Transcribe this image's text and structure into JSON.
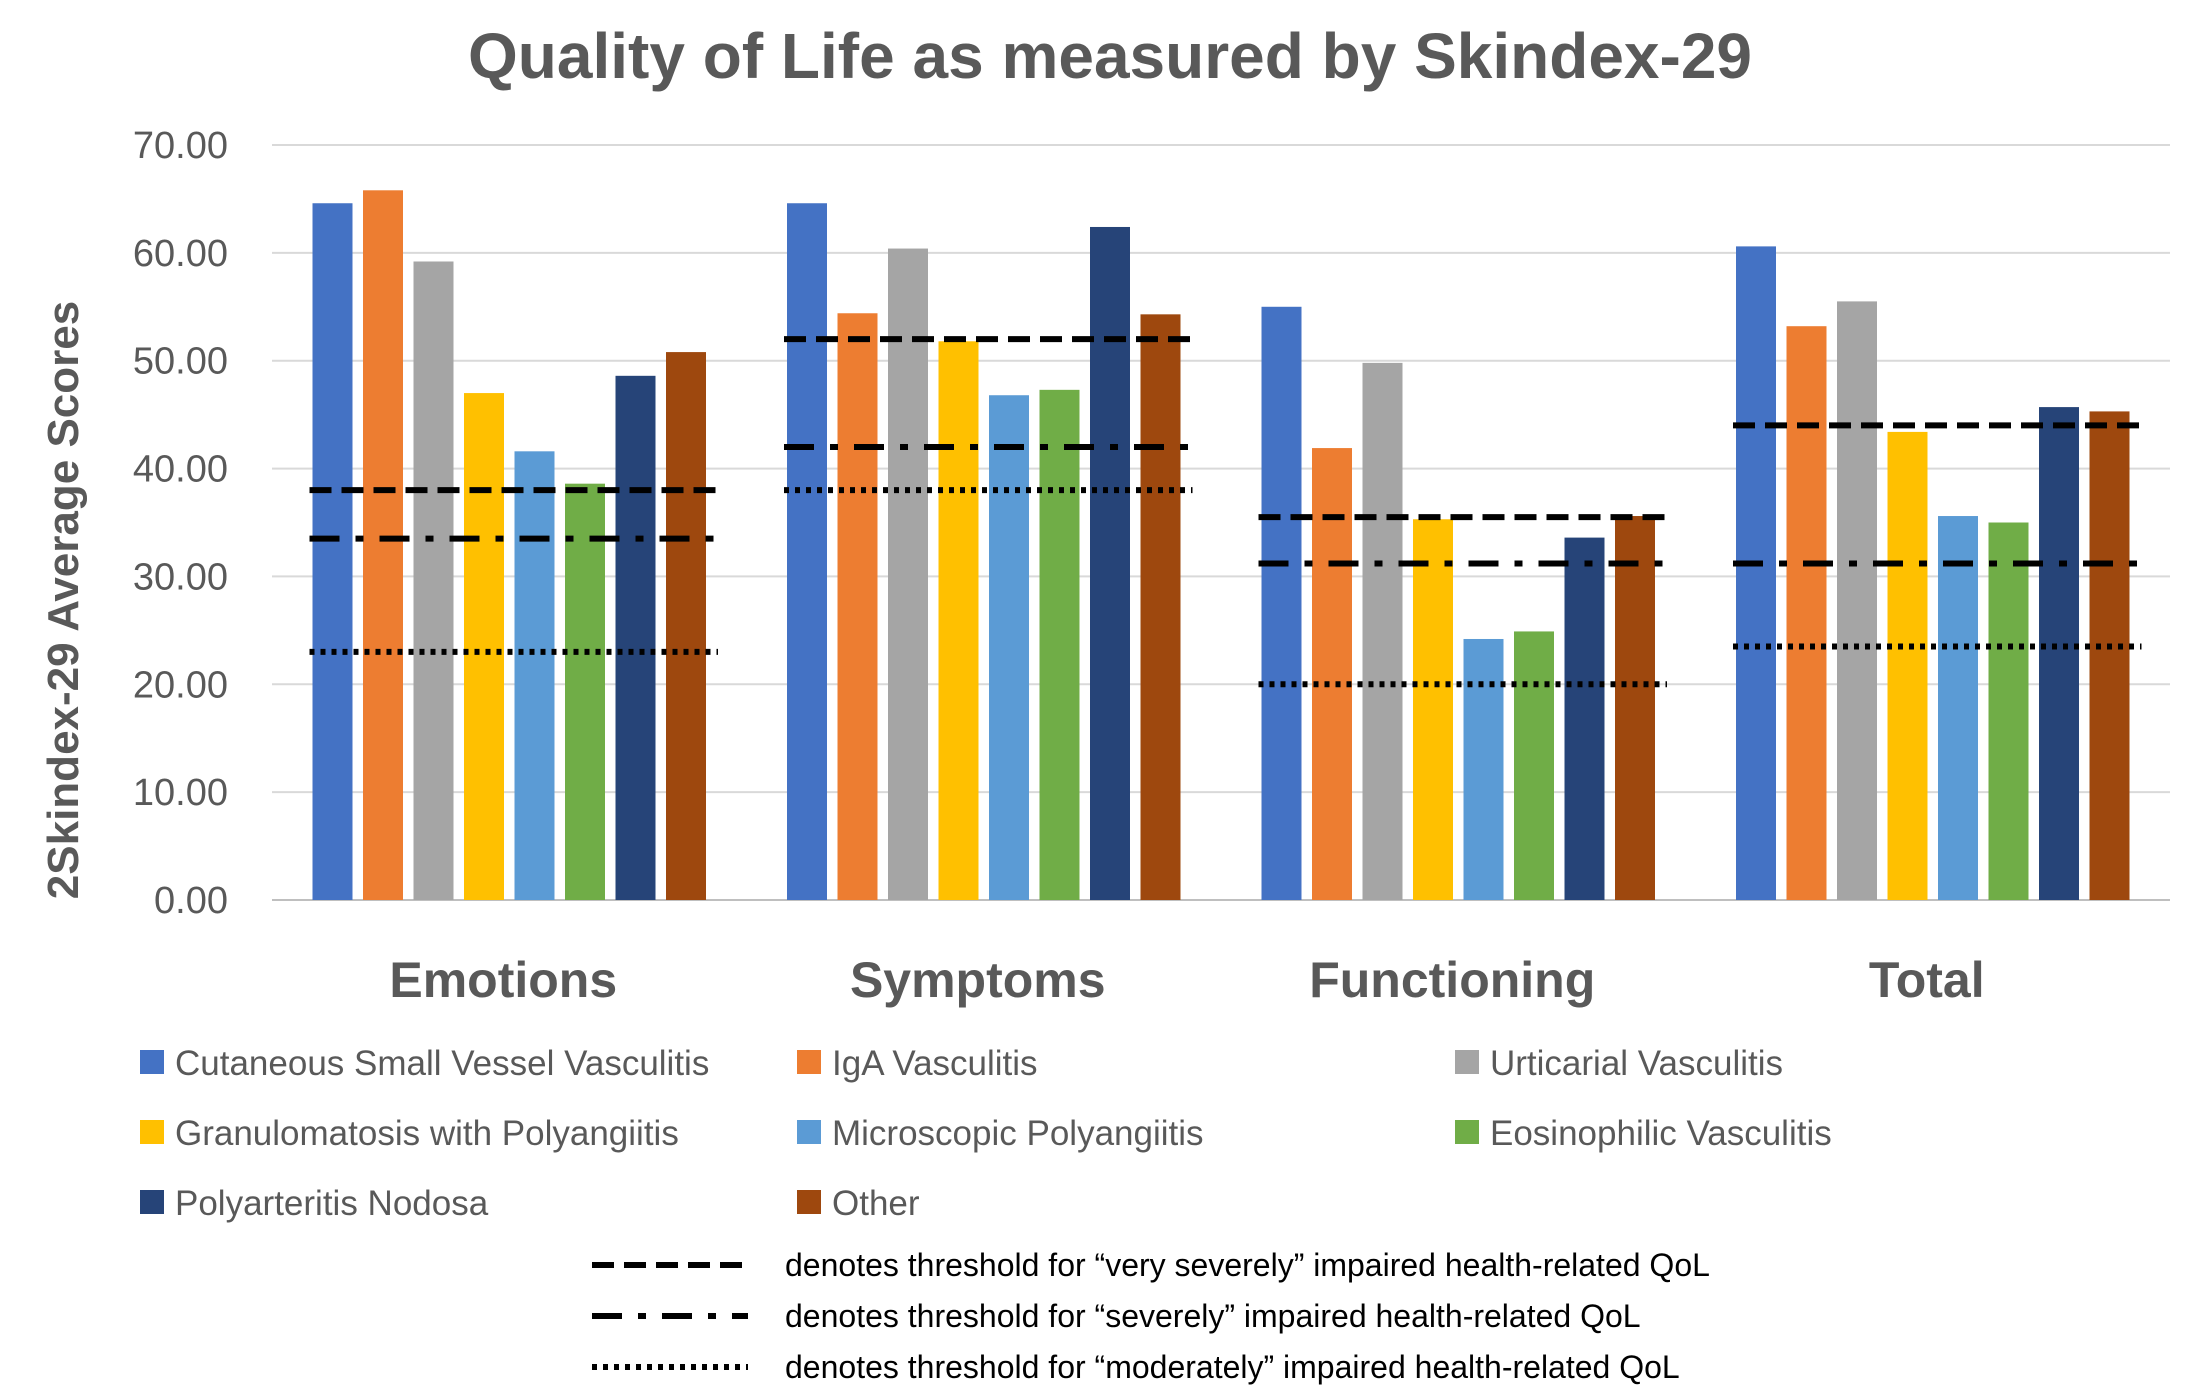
{
  "chart_data": {
    "type": "bar",
    "title": "Quality of Life as measured by Skindex-29",
    "ylabel": "2Skindex-29 Average Scores",
    "xlabel": "",
    "ylim": [
      0,
      70
    ],
    "yticks": [
      "0.00",
      "10.00",
      "20.00",
      "30.00",
      "40.00",
      "50.00",
      "60.00",
      "70.00"
    ],
    "grid": true,
    "legend_position": "bottom",
    "categories": [
      "Emotions",
      "Symptoms",
      "Functioning",
      "Total"
    ],
    "series": [
      {
        "name": "Cutaneous Small Vessel Vasculitis",
        "color": "#4472C4",
        "values": [
          64.6,
          64.6,
          55.0,
          60.6
        ]
      },
      {
        "name": "IgA Vasculitis",
        "color": "#ED7D31",
        "values": [
          65.8,
          54.4,
          41.9,
          53.2
        ]
      },
      {
        "name": "Urticarial Vasculitis",
        "color": "#A5A5A5",
        "values": [
          59.2,
          60.4,
          49.8,
          55.5
        ]
      },
      {
        "name": "Granulomatosis with Polyangiitis",
        "color": "#FFC000",
        "values": [
          47.0,
          51.8,
          35.3,
          43.4
        ]
      },
      {
        "name": "Microscopic Polyangiitis",
        "color": "#5B9BD5",
        "values": [
          41.6,
          46.8,
          24.2,
          35.6
        ]
      },
      {
        "name": "Eosinophilic Vasculitis",
        "color": "#70AD47",
        "values": [
          38.6,
          47.3,
          24.9,
          35.0
        ]
      },
      {
        "name": "Polyarteritis Nodosa",
        "color": "#264478",
        "values": [
          48.6,
          62.4,
          33.6,
          45.7
        ]
      },
      {
        "name": "Other",
        "color": "#9E480E",
        "values": [
          50.8,
          54.3,
          35.6,
          45.3
        ]
      }
    ],
    "thresholds": [
      {
        "style": "dashed",
        "values": [
          38.0,
          52.0,
          35.5,
          44.0
        ]
      },
      {
        "style": "dash-dot",
        "values": [
          33.5,
          42.0,
          31.2,
          31.2
        ]
      },
      {
        "style": "dotted",
        "values": [
          23.0,
          38.0,
          20.0,
          23.5
        ]
      }
    ],
    "threshold_notes": [
      "denotes threshold for “very severely” impaired health-related QoL",
      "denotes threshold for “severely” impaired health-related QoL",
      "denotes threshold for “moderately” impaired health-related QoL"
    ]
  }
}
